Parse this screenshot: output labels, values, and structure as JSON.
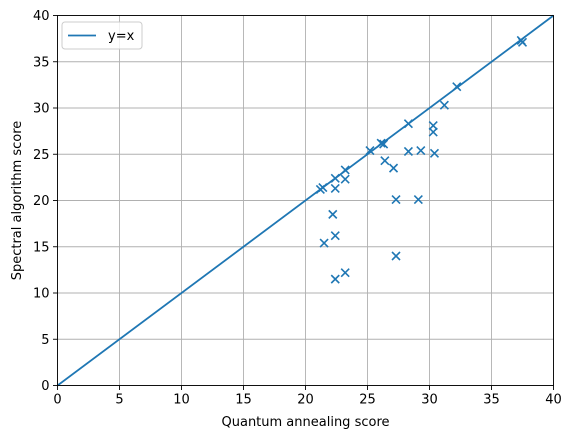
{
  "chart_data": {
    "type": "scatter",
    "title": "",
    "xlabel": "Quantum annealing score",
    "ylabel": "Spectral algorithm score",
    "xlim": [
      0,
      40
    ],
    "ylim": [
      0,
      40
    ],
    "xticks": [
      0,
      5,
      10,
      15,
      20,
      25,
      30,
      35,
      40
    ],
    "yticks": [
      0,
      5,
      10,
      15,
      20,
      25,
      30,
      35,
      40
    ],
    "grid": true,
    "legend": {
      "placement": "top-left",
      "entries": [
        "y=x"
      ]
    },
    "colors": {
      "series": "#1f77b4",
      "grid": "#b0b0b0"
    },
    "reference_line": {
      "name": "y=x",
      "x": [
        0,
        40
      ],
      "y": [
        0,
        40
      ]
    },
    "series": [
      {
        "marker": "x",
        "points": [
          [
            21.2,
            21.2
          ],
          [
            21.4,
            21.4
          ],
          [
            22.4,
            21.3
          ],
          [
            22.4,
            22.4
          ],
          [
            23.2,
            23.3
          ],
          [
            23.2,
            22.3
          ],
          [
            22.2,
            18.5
          ],
          [
            22.4,
            16.2
          ],
          [
            21.5,
            15.4
          ],
          [
            23.2,
            12.2
          ],
          [
            22.4,
            11.5
          ],
          [
            25.2,
            25.4
          ],
          [
            26.1,
            26.2
          ],
          [
            26.3,
            26.1
          ],
          [
            26.4,
            24.3
          ],
          [
            27.1,
            23.5
          ],
          [
            27.3,
            20.1
          ],
          [
            27.3,
            14.0
          ],
          [
            28.3,
            28.3
          ],
          [
            28.3,
            25.3
          ],
          [
            29.3,
            25.4
          ],
          [
            29.1,
            20.1
          ],
          [
            30.3,
            28.1
          ],
          [
            30.3,
            27.4
          ],
          [
            30.4,
            25.1
          ],
          [
            31.2,
            30.3
          ],
          [
            32.2,
            32.3
          ],
          [
            37.4,
            37.3
          ],
          [
            37.5,
            37.1
          ]
        ]
      }
    ]
  }
}
